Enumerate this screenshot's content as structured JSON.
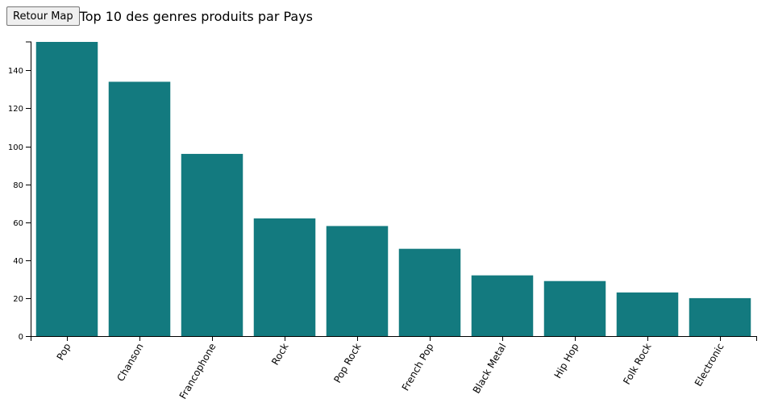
{
  "header": {
    "back_label": "Retour Map",
    "title": "Top 10 des genres produits par Pays"
  },
  "colors": {
    "bar": "#137a7f",
    "axis": "#000000"
  },
  "chart_data": {
    "type": "bar",
    "title": "Top 10 des genres produits par Pays",
    "xlabel": "",
    "ylabel": "",
    "categories": [
      "Pop",
      "Chanson",
      "Francophone",
      "Rock",
      "Pop Rock",
      "French Pop",
      "Black Metal",
      "Hip Hop",
      "Folk Rock",
      "Electronic"
    ],
    "values": [
      155,
      134,
      96,
      62,
      58,
      46,
      32,
      29,
      23,
      20
    ],
    "ylim": [
      0,
      155
    ],
    "yticks": [
      0,
      20,
      40,
      60,
      80,
      100,
      120,
      140
    ],
    "grid": false,
    "legend": "none"
  }
}
